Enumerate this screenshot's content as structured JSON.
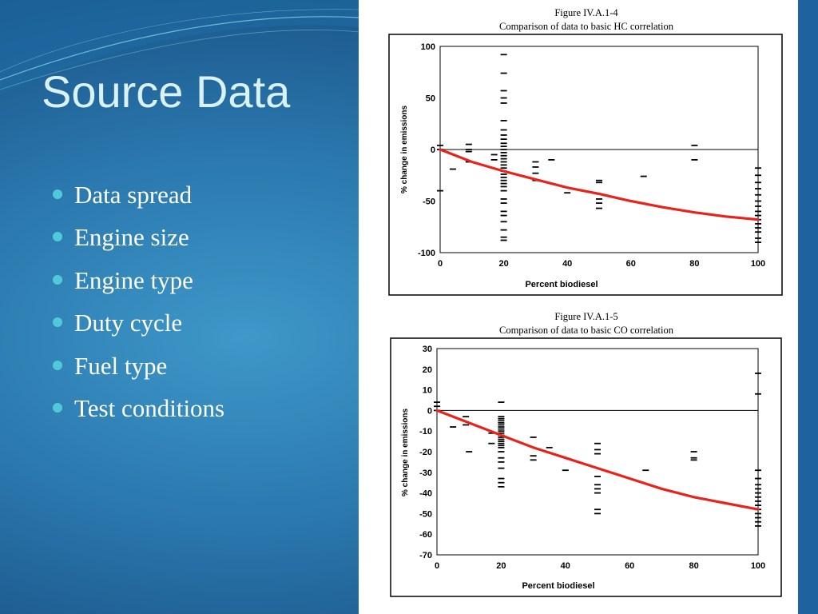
{
  "slide": {
    "title": "Source Data",
    "bullets": [
      "Data spread",
      "Engine size",
      "Engine type",
      "Duty cycle",
      "Fuel type",
      "Test conditions"
    ]
  },
  "chart_data": [
    {
      "type": "scatter",
      "figure_number": "Figure IV.A.1-4",
      "title": "Comparison of data to basic HC correlation",
      "xlabel": "Percent biodiesel",
      "ylabel": "% change in emissions",
      "xlim": [
        0,
        100
      ],
      "ylim": [
        -100,
        100
      ],
      "xticks": [
        0,
        20,
        40,
        60,
        80,
        100
      ],
      "yticks": [
        100,
        50,
        0,
        -50,
        -100
      ],
      "zero_line": true,
      "grid": false,
      "marker": "dash",
      "points": [
        {
          "x": 0,
          "y": 4
        },
        {
          "x": 0,
          "y": 0
        },
        {
          "x": 0,
          "y": -40
        },
        {
          "x": 4,
          "y": -19
        },
        {
          "x": 9,
          "y": 5
        },
        {
          "x": 9,
          "y": 0
        },
        {
          "x": 9,
          "y": -2
        },
        {
          "x": 9,
          "y": -12
        },
        {
          "x": 17,
          "y": -5
        },
        {
          "x": 17,
          "y": -10
        },
        {
          "x": 20,
          "y": 92
        },
        {
          "x": 20,
          "y": 74
        },
        {
          "x": 20,
          "y": 57
        },
        {
          "x": 20,
          "y": 50
        },
        {
          "x": 20,
          "y": 45
        },
        {
          "x": 20,
          "y": 28
        },
        {
          "x": 20,
          "y": 19
        },
        {
          "x": 20,
          "y": 14
        },
        {
          "x": 20,
          "y": 10
        },
        {
          "x": 20,
          "y": 6
        },
        {
          "x": 20,
          "y": 3
        },
        {
          "x": 20,
          "y": 0
        },
        {
          "x": 20,
          "y": -3
        },
        {
          "x": 20,
          "y": -6
        },
        {
          "x": 20,
          "y": -9
        },
        {
          "x": 20,
          "y": -12
        },
        {
          "x": 20,
          "y": -15
        },
        {
          "x": 20,
          "y": -18
        },
        {
          "x": 20,
          "y": -21
        },
        {
          "x": 20,
          "y": -24
        },
        {
          "x": 20,
          "y": -27
        },
        {
          "x": 20,
          "y": -30
        },
        {
          "x": 20,
          "y": -33
        },
        {
          "x": 20,
          "y": -36
        },
        {
          "x": 20,
          "y": -40
        },
        {
          "x": 20,
          "y": -48
        },
        {
          "x": 20,
          "y": -52
        },
        {
          "x": 20,
          "y": -60
        },
        {
          "x": 20,
          "y": -64
        },
        {
          "x": 20,
          "y": -70
        },
        {
          "x": 20,
          "y": -78
        },
        {
          "x": 20,
          "y": -85
        },
        {
          "x": 20,
          "y": -88
        },
        {
          "x": 30,
          "y": -12
        },
        {
          "x": 30,
          "y": -17
        },
        {
          "x": 30,
          "y": -23
        },
        {
          "x": 30,
          "y": -30
        },
        {
          "x": 35,
          "y": -10
        },
        {
          "x": 40,
          "y": -42
        },
        {
          "x": 50,
          "y": -30
        },
        {
          "x": 50,
          "y": -32
        },
        {
          "x": 50,
          "y": -48
        },
        {
          "x": 50,
          "y": -52
        },
        {
          "x": 50,
          "y": -57
        },
        {
          "x": 64,
          "y": -26
        },
        {
          "x": 80,
          "y": 4
        },
        {
          "x": 80,
          "y": -10
        },
        {
          "x": 100,
          "y": -18
        },
        {
          "x": 100,
          "y": -25
        },
        {
          "x": 100,
          "y": -32
        },
        {
          "x": 100,
          "y": -38
        },
        {
          "x": 100,
          "y": -44
        },
        {
          "x": 100,
          "y": -50
        },
        {
          "x": 100,
          "y": -55
        },
        {
          "x": 100,
          "y": -60
        },
        {
          "x": 100,
          "y": -64
        },
        {
          "x": 100,
          "y": -68
        },
        {
          "x": 100,
          "y": -72
        },
        {
          "x": 100,
          "y": -76
        },
        {
          "x": 100,
          "y": -80
        },
        {
          "x": 100,
          "y": -86
        },
        {
          "x": 100,
          "y": -90
        }
      ],
      "correlation_curve": {
        "color": "#e8241a",
        "points": [
          [
            0,
            0
          ],
          [
            10,
            -12
          ],
          [
            20,
            -21
          ],
          [
            30,
            -29
          ],
          [
            40,
            -37
          ],
          [
            50,
            -43
          ],
          [
            60,
            -50
          ],
          [
            70,
            -56
          ],
          [
            80,
            -61
          ],
          [
            90,
            -65
          ],
          [
            100,
            -68
          ]
        ]
      }
    },
    {
      "type": "scatter",
      "figure_number": "Figure IV.A.1-5",
      "title": "Comparison of data to basic CO correlation",
      "xlabel": "Percent biodiesel",
      "ylabel": "% change in emissions",
      "xlim": [
        0,
        100
      ],
      "ylim": [
        -70,
        30
      ],
      "xticks": [
        0,
        20,
        40,
        60,
        80,
        100
      ],
      "yticks": [
        30,
        20,
        10,
        0,
        -10,
        -20,
        -30,
        -40,
        -50,
        -60,
        -70
      ],
      "zero_line": true,
      "grid": false,
      "marker": "dash",
      "points": [
        {
          "x": 0,
          "y": 4
        },
        {
          "x": 0,
          "y": 2
        },
        {
          "x": 0,
          "y": 0
        },
        {
          "x": 5,
          "y": -8
        },
        {
          "x": 9,
          "y": -3
        },
        {
          "x": 9,
          "y": -7
        },
        {
          "x": 10,
          "y": -20
        },
        {
          "x": 17,
          "y": -11
        },
        {
          "x": 17,
          "y": -16
        },
        {
          "x": 20,
          "y": 4
        },
        {
          "x": 20,
          "y": -3
        },
        {
          "x": 20,
          "y": -4
        },
        {
          "x": 20,
          "y": -5
        },
        {
          "x": 20,
          "y": -6
        },
        {
          "x": 20,
          "y": -7
        },
        {
          "x": 20,
          "y": -8
        },
        {
          "x": 20,
          "y": -9
        },
        {
          "x": 20,
          "y": -10
        },
        {
          "x": 20,
          "y": -11
        },
        {
          "x": 20,
          "y": -12
        },
        {
          "x": 20,
          "y": -13
        },
        {
          "x": 20,
          "y": -14
        },
        {
          "x": 20,
          "y": -15
        },
        {
          "x": 20,
          "y": -16
        },
        {
          "x": 20,
          "y": -17
        },
        {
          "x": 20,
          "y": -18
        },
        {
          "x": 20,
          "y": -20
        },
        {
          "x": 20,
          "y": -23
        },
        {
          "x": 20,
          "y": -25
        },
        {
          "x": 20,
          "y": -28
        },
        {
          "x": 20,
          "y": -33
        },
        {
          "x": 20,
          "y": -35
        },
        {
          "x": 20,
          "y": -37
        },
        {
          "x": 30,
          "y": -13
        },
        {
          "x": 30,
          "y": -22
        },
        {
          "x": 30,
          "y": -24
        },
        {
          "x": 35,
          "y": -18
        },
        {
          "x": 40,
          "y": -29
        },
        {
          "x": 50,
          "y": -16
        },
        {
          "x": 50,
          "y": -19
        },
        {
          "x": 50,
          "y": -21
        },
        {
          "x": 50,
          "y": -32
        },
        {
          "x": 50,
          "y": -36
        },
        {
          "x": 50,
          "y": -38
        },
        {
          "x": 50,
          "y": -40
        },
        {
          "x": 50,
          "y": -48
        },
        {
          "x": 50,
          "y": -50
        },
        {
          "x": 65,
          "y": -29
        },
        {
          "x": 80,
          "y": -20
        },
        {
          "x": 80,
          "y": -23
        },
        {
          "x": 80,
          "y": -24
        },
        {
          "x": 100,
          "y": 18
        },
        {
          "x": 100,
          "y": 8
        },
        {
          "x": 100,
          "y": -29
        },
        {
          "x": 100,
          "y": -33
        },
        {
          "x": 100,
          "y": -36
        },
        {
          "x": 100,
          "y": -38
        },
        {
          "x": 100,
          "y": -40
        },
        {
          "x": 100,
          "y": -42
        },
        {
          "x": 100,
          "y": -44
        },
        {
          "x": 100,
          "y": -46
        },
        {
          "x": 100,
          "y": -48
        },
        {
          "x": 100,
          "y": -50
        },
        {
          "x": 100,
          "y": -52
        },
        {
          "x": 100,
          "y": -54
        },
        {
          "x": 100,
          "y": -56
        }
      ],
      "correlation_curve": {
        "color": "#e8241a",
        "points": [
          [
            0,
            0
          ],
          [
            10,
            -6
          ],
          [
            20,
            -12
          ],
          [
            30,
            -18
          ],
          [
            40,
            -23
          ],
          [
            50,
            -28
          ],
          [
            60,
            -33
          ],
          [
            70,
            -38
          ],
          [
            80,
            -42
          ],
          [
            90,
            -45
          ],
          [
            100,
            -48
          ]
        ]
      }
    }
  ]
}
